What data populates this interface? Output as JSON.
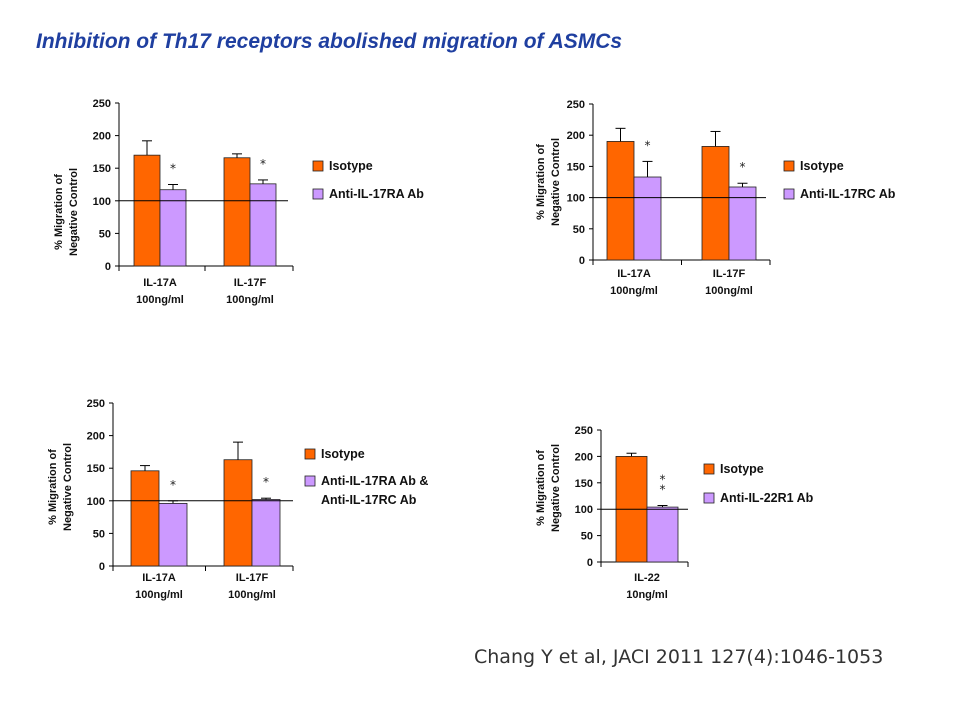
{
  "title": "Inhibition of Th17 receptors abolished migration of ASMCs",
  "citation": "Chang Y et al, JACI 2011 127(4):1046-1053",
  "colors": {
    "isotype": "#ff6600",
    "antibody": "#cc99ff",
    "title": "#1f3fa0"
  },
  "chart_data": [
    {
      "type": "bar",
      "ylabel": [
        "% Migration of",
        "Negative Control"
      ],
      "ylim": [
        0,
        250
      ],
      "yticks": [
        "0",
        "50",
        "100",
        "150",
        "200",
        "250"
      ],
      "categories": [
        [
          "IL-17A",
          "100ng/ml"
        ],
        [
          "IL-17F",
          "100ng/ml"
        ]
      ],
      "series": [
        {
          "name": "Isotype",
          "values": [
            170,
            166
          ],
          "errors": [
            22,
            6
          ]
        },
        {
          "name": "Anti-IL-17RA Ab",
          "values": [
            117,
            126
          ],
          "errors": [
            8,
            6
          ]
        }
      ],
      "asterisks": [
        "*",
        "*"
      ],
      "reference_line": 100
    },
    {
      "type": "bar",
      "ylabel": [
        "% Migration of",
        "Negative Control"
      ],
      "ylim": [
        0,
        250
      ],
      "yticks": [
        "0",
        "50",
        "100",
        "150",
        "200",
        "250"
      ],
      "categories": [
        [
          "IL-17A",
          "100ng/ml"
        ],
        [
          "IL-17F",
          "100ng/ml"
        ]
      ],
      "series": [
        {
          "name": "Isotype",
          "values": [
            190,
            182
          ],
          "errors": [
            21,
            24
          ]
        },
        {
          "name": "Anti-IL-17RC Ab",
          "values": [
            133,
            117
          ],
          "errors": [
            25,
            6
          ]
        }
      ],
      "asterisks": [
        "*",
        "*"
      ],
      "reference_line": 100
    },
    {
      "type": "bar",
      "ylabel": [
        "% Migration of",
        "Negative Control"
      ],
      "ylim": [
        0,
        250
      ],
      "yticks": [
        "0",
        "50",
        "100",
        "150",
        "200",
        "250"
      ],
      "categories": [
        [
          "IL-17A",
          "100ng/ml"
        ],
        [
          "IL-17F",
          "100ng/ml"
        ]
      ],
      "series": [
        {
          "name": "Isotype",
          "values": [
            146,
            163
          ],
          "errors": [
            8,
            27
          ]
        },
        {
          "name": [
            "Anti-IL-17RA Ab &",
            "Anti-IL-17RC Ab"
          ],
          "values": [
            96,
            102
          ],
          "errors": [
            4,
            2
          ]
        }
      ],
      "asterisks": [
        "*",
        "*"
      ],
      "reference_line": 100
    },
    {
      "type": "bar",
      "ylabel": [
        "% Migration of",
        "Negative Control"
      ],
      "ylim": [
        0,
        250
      ],
      "yticks": [
        "0",
        "50",
        "100",
        "150",
        "200",
        "250"
      ],
      "categories": [
        [
          "IL-22",
          "10ng/ml"
        ]
      ],
      "series": [
        {
          "name": "Isotype",
          "values": [
            200
          ],
          "errors": [
            6
          ]
        },
        {
          "name": "Anti-IL-22R1 Ab",
          "values": [
            104
          ],
          "errors": [
            3
          ]
        }
      ],
      "asterisks": [
        "*\n*"
      ],
      "reference_line": 100
    }
  ]
}
